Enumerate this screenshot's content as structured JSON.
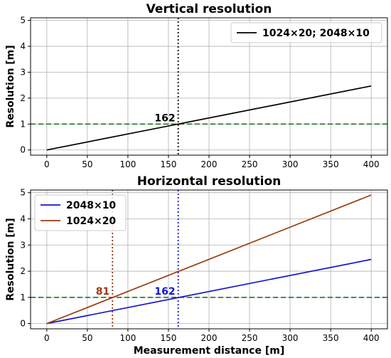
{
  "chart_data": [
    {
      "type": "line",
      "title": "Vertical resolution",
      "xlabel": "",
      "ylabel": "Resolution [m]",
      "xlim": [
        -20,
        420
      ],
      "ylim": [
        -0.2,
        5.1
      ],
      "xticks": [
        0,
        50,
        100,
        150,
        200,
        250,
        300,
        350,
        400
      ],
      "yticks": [
        0,
        1,
        2,
        3,
        4,
        5
      ],
      "grid": true,
      "legend_position": "top-right",
      "series": [
        {
          "name": "1024×20; 2048×10",
          "x": [
            0,
            400
          ],
          "y": [
            0,
            2.47
          ],
          "color": "#000000"
        }
      ],
      "hlines": [
        {
          "y": 1,
          "color": "#1a7a1a",
          "style": "dashed"
        }
      ],
      "vlines": [
        {
          "x": 162,
          "color": "#000000",
          "style": "dotted"
        }
      ],
      "annotations": [
        {
          "text": "162",
          "x": 162,
          "y": 1,
          "color": "#000000"
        }
      ]
    },
    {
      "type": "line",
      "title": "Horizontal resolution",
      "xlabel": "Measurement distance [m]",
      "ylabel": "Resolution [m]",
      "xlim": [
        -20,
        420
      ],
      "ylim": [
        -0.2,
        5.1
      ],
      "xticks": [
        0,
        50,
        100,
        150,
        200,
        250,
        300,
        350,
        400
      ],
      "yticks": [
        0,
        1,
        2,
        3,
        4,
        5
      ],
      "grid": true,
      "legend_position": "top-left",
      "series": [
        {
          "name": "2048×10",
          "x": [
            0,
            400
          ],
          "y": [
            0,
            2.45
          ],
          "color": "#1414d2"
        },
        {
          "name": "1024×20",
          "x": [
            0,
            400
          ],
          "y": [
            0,
            4.91
          ],
          "color": "#9c3a10"
        }
      ],
      "hlines": [
        {
          "y": 1,
          "color": "#1a7a1a",
          "style": "dashed"
        }
      ],
      "vlines": [
        {
          "x": 81,
          "color": "#8b3a0e",
          "style": "dotted"
        },
        {
          "x": 162,
          "color": "#1414d2",
          "style": "dotted"
        }
      ],
      "annotations": [
        {
          "text": "81",
          "x": 81,
          "y": 1,
          "color": "#9c3a10"
        },
        {
          "text": "162",
          "x": 162,
          "y": 1,
          "color": "#1414d2"
        }
      ]
    }
  ]
}
